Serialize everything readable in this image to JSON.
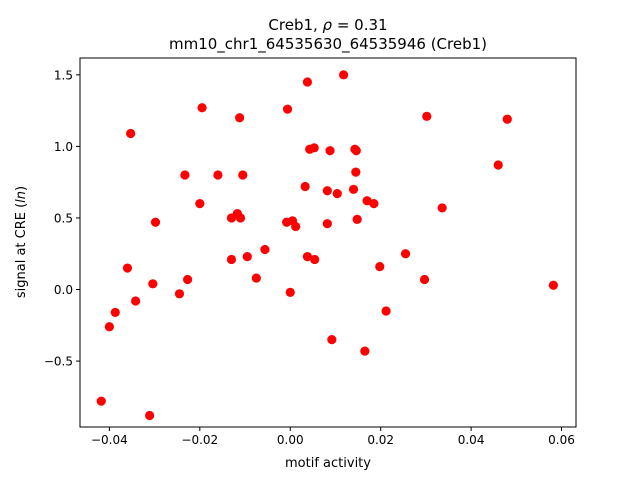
{
  "chart_data": {
    "type": "scatter",
    "title_line1_prefix": "Creb1, ",
    "title_line1_rho": "ρ",
    "title_line1_suffix": " = 0.31",
    "title_line2": "mm10_chr1_64535630_64535946 (Creb1)",
    "xlabel": "motif activity",
    "ylabel_prefix": "signal at CRE (",
    "ylabel_italic": "ln",
    "ylabel_suffix": ")",
    "xlim": [
      -0.0465,
      0.0632
    ],
    "ylim": [
      -0.9605,
      1.6175
    ],
    "xticks": [
      {
        "value": -0.04,
        "label": "−0.04"
      },
      {
        "value": -0.02,
        "label": "−0.02"
      },
      {
        "value": 0.0,
        "label": "0.00"
      },
      {
        "value": 0.02,
        "label": "0.02"
      },
      {
        "value": 0.04,
        "label": "0.04"
      },
      {
        "value": 0.06,
        "label": "0.06"
      }
    ],
    "yticks": [
      {
        "value": -0.5,
        "label": "−0.5"
      },
      {
        "value": 0.0,
        "label": "0.0"
      },
      {
        "value": 0.5,
        "label": "0.5"
      },
      {
        "value": 1.0,
        "label": "1.0"
      },
      {
        "value": 1.5,
        "label": "1.5"
      }
    ],
    "marker_color": "#ff0000",
    "grid": false,
    "points": [
      {
        "x": -0.0418,
        "y": -0.78
      },
      {
        "x": -0.04,
        "y": -0.26
      },
      {
        "x": -0.0387,
        "y": -0.16
      },
      {
        "x": -0.036,
        "y": 0.15
      },
      {
        "x": -0.0353,
        "y": 1.09
      },
      {
        "x": -0.0342,
        "y": -0.08
      },
      {
        "x": -0.0311,
        "y": -0.88
      },
      {
        "x": -0.0304,
        "y": 0.04
      },
      {
        "x": -0.0298,
        "y": 0.47
      },
      {
        "x": -0.0245,
        "y": -0.03
      },
      {
        "x": -0.0233,
        "y": 0.8
      },
      {
        "x": -0.0227,
        "y": 0.07
      },
      {
        "x": -0.02,
        "y": 0.6
      },
      {
        "x": -0.0195,
        "y": 1.27
      },
      {
        "x": -0.016,
        "y": 0.8
      },
      {
        "x": -0.013,
        "y": 0.5
      },
      {
        "x": -0.013,
        "y": 0.21
      },
      {
        "x": -0.0117,
        "y": 0.53
      },
      {
        "x": -0.0112,
        "y": 1.2
      },
      {
        "x": -0.011,
        "y": 0.5
      },
      {
        "x": -0.0105,
        "y": 0.8
      },
      {
        "x": -0.0095,
        "y": 0.23
      },
      {
        "x": -0.0075,
        "y": 0.08
      },
      {
        "x": -0.0056,
        "y": 0.28
      },
      {
        "x": -0.0008,
        "y": 0.47
      },
      {
        "x": -0.0006,
        "y": 1.26
      },
      {
        "x": 0.0,
        "y": -0.02
      },
      {
        "x": 0.0005,
        "y": 0.48
      },
      {
        "x": 0.0012,
        "y": 0.44
      },
      {
        "x": 0.0033,
        "y": 0.72
      },
      {
        "x": 0.0038,
        "y": 1.45
      },
      {
        "x": 0.0038,
        "y": 0.23
      },
      {
        "x": 0.0043,
        "y": 0.98
      },
      {
        "x": 0.0053,
        "y": 0.99
      },
      {
        "x": 0.0054,
        "y": 0.21
      },
      {
        "x": 0.0082,
        "y": 0.69
      },
      {
        "x": 0.0082,
        "y": 0.46
      },
      {
        "x": 0.0088,
        "y": 0.97
      },
      {
        "x": 0.0092,
        "y": -0.35
      },
      {
        "x": 0.0104,
        "y": 0.67
      },
      {
        "x": 0.0118,
        "y": 1.5
      },
      {
        "x": 0.014,
        "y": 0.7
      },
      {
        "x": 0.0143,
        "y": 0.98
      },
      {
        "x": 0.0145,
        "y": 0.82
      },
      {
        "x": 0.0146,
        "y": 0.97
      },
      {
        "x": 0.0148,
        "y": 0.49
      },
      {
        "x": 0.0165,
        "y": -0.43
      },
      {
        "x": 0.017,
        "y": 0.62
      },
      {
        "x": 0.0185,
        "y": 0.6
      },
      {
        "x": 0.0198,
        "y": 0.16
      },
      {
        "x": 0.0212,
        "y": -0.15
      },
      {
        "x": 0.0255,
        "y": 0.25
      },
      {
        "x": 0.0297,
        "y": 0.07
      },
      {
        "x": 0.0302,
        "y": 1.21
      },
      {
        "x": 0.0336,
        "y": 0.57
      },
      {
        "x": 0.046,
        "y": 0.87
      },
      {
        "x": 0.048,
        "y": 1.19
      },
      {
        "x": 0.0582,
        "y": 0.03
      }
    ]
  }
}
